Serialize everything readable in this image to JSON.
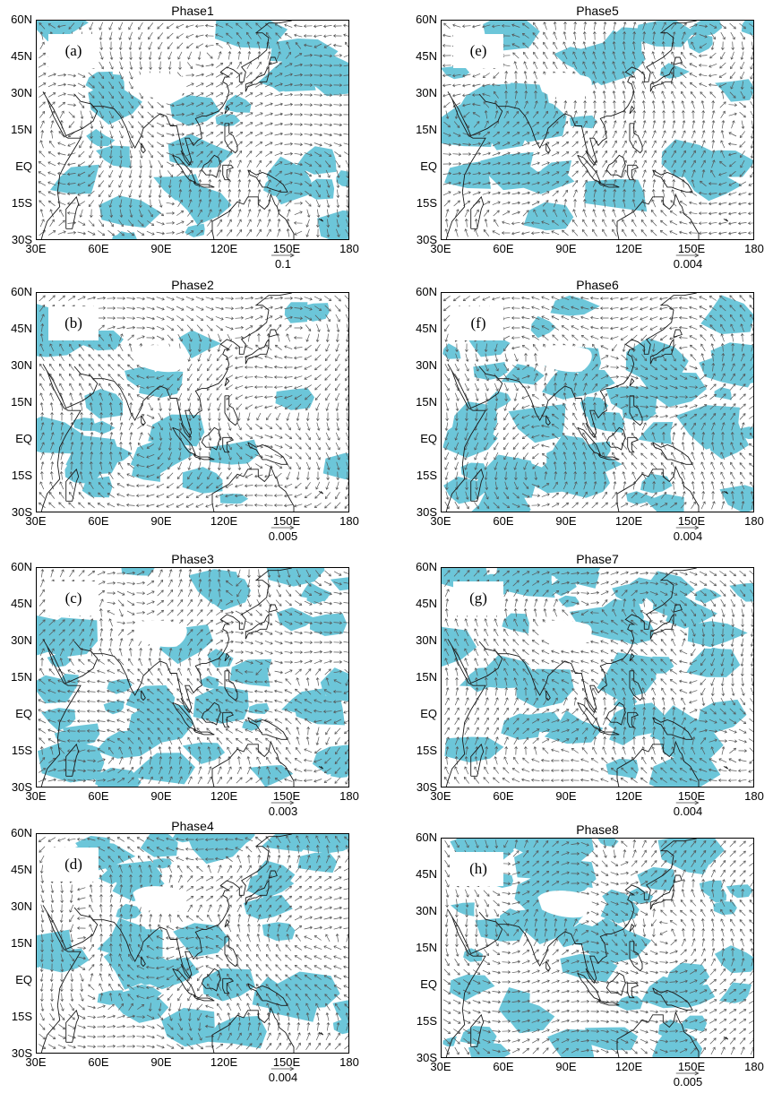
{
  "colors": {
    "shade": "#6cc6d9",
    "arrow": "#555555",
    "coast": "#1a1a1a",
    "frame": "#000000"
  },
  "axes": {
    "x_ticks": [
      "30E",
      "60E",
      "90E",
      "120E",
      "150E",
      "180"
    ],
    "y_ticks": [
      "60N",
      "45N",
      "30N",
      "15N",
      "EQ",
      "15S",
      "30S"
    ]
  },
  "panels": [
    {
      "letter": "(a)",
      "title": "Phase1",
      "scale": "0.1",
      "shading": 0.2,
      "seed": 11
    },
    {
      "letter": "(e)",
      "title": "Phase5",
      "scale": "0.004",
      "shading": 0.22,
      "seed": 53
    },
    {
      "letter": "(b)",
      "title": "Phase2",
      "scale": "0.005",
      "shading": 0.12,
      "seed": 27
    },
    {
      "letter": "(f)",
      "title": "Phase6",
      "scale": "0.004",
      "shading": 0.45,
      "seed": 61
    },
    {
      "letter": "(c)",
      "title": "Phase3",
      "scale": "0.003",
      "shading": 0.42,
      "seed": 37
    },
    {
      "letter": "(g)",
      "title": "Phase7",
      "scale": "0.004",
      "shading": 0.48,
      "seed": 71
    },
    {
      "letter": "(d)",
      "title": "Phase4",
      "scale": "0.004",
      "shading": 0.38,
      "seed": 43
    },
    {
      "letter": "(h)",
      "title": "Phase8",
      "scale": "0.005",
      "shading": 0.52,
      "seed": 83
    }
  ]
}
